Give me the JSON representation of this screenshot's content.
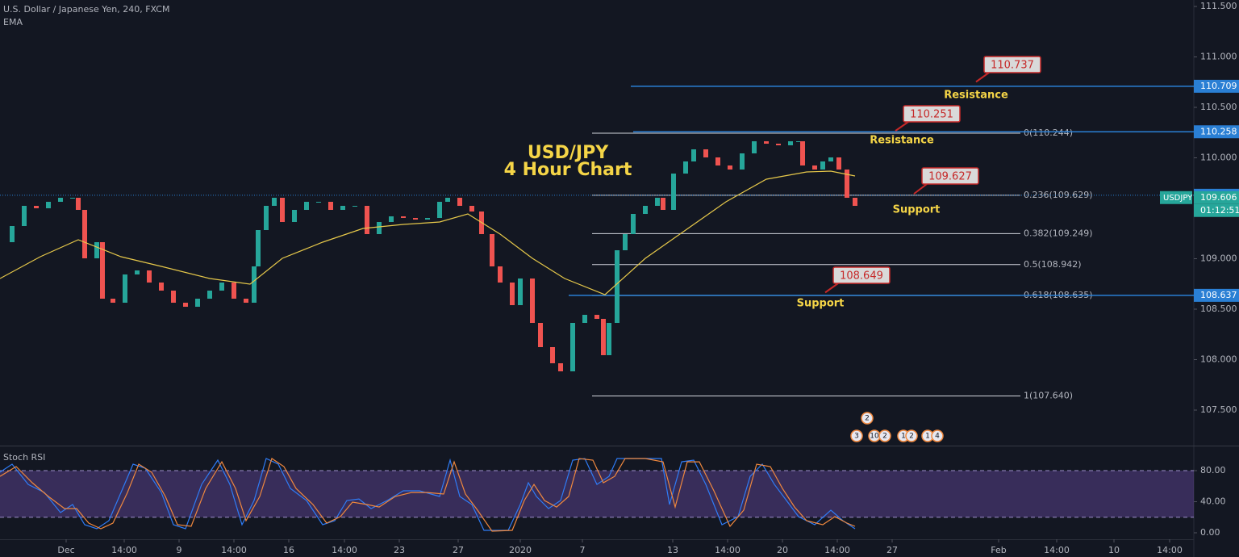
{
  "chart_data": [
    {
      "type": "candlestick",
      "title": "U.S. Dollar / Japanese Yen, 240, FXCM",
      "subtitle": "EMA",
      "heading": [
        "USD/JPY",
        "4 Hour Chart"
      ],
      "xlim": [
        0,
        148
      ],
      "ylim": [
        107.148,
        111.564
      ],
      "yticks": [
        {
          "value": 111.5,
          "label": "111.500"
        },
        {
          "value": 111,
          "label": "111.000"
        },
        {
          "value": 110.5,
          "label": "110.500"
        },
        {
          "value": 110,
          "label": "110.000"
        },
        {
          "value": 109.5,
          "label": "109.500"
        },
        {
          "value": 109,
          "label": "109.000"
        },
        {
          "value": 108.5,
          "label": "108.500"
        },
        {
          "value": 108,
          "label": "108.000"
        },
        {
          "value": 107.5,
          "label": "107.500"
        }
      ],
      "up_color": "#26a69a",
      "down_color": "#ef5350",
      "x": [
        0,
        1.5,
        3,
        4.5,
        6,
        7.5,
        9,
        9.7,
        10.5,
        12,
        12.7,
        14,
        15.5,
        17,
        18.5,
        20,
        21.5,
        23,
        24.5,
        26,
        27.5,
        29,
        30.5,
        31.5,
        32,
        33,
        34,
        35,
        36.5,
        38,
        39.5,
        41,
        42.5,
        44,
        45.5,
        47,
        48.5,
        50,
        51.5,
        53,
        54.5,
        55.5,
        57,
        58.5,
        59.7,
        61,
        62,
        63.5,
        64.5,
        66,
        67,
        68.5,
        69.5,
        71,
        72.5,
        74,
        74.8,
        75.5,
        76.5,
        77.5,
        78.5,
        80,
        81.5,
        82.2,
        83.5,
        85,
        86,
        87.5,
        89,
        90.5,
        92,
        93.5,
        95,
        96.5,
        98,
        99,
        99.5,
        101,
        102,
        103,
        104,
        105,
        106
      ],
      "values": [
        109.164,
        109.324,
        109.524,
        109.5,
        109.564,
        109.604,
        109.604,
        109.484,
        109.004,
        109.164,
        108.604,
        108.564,
        108.844,
        108.884,
        108.764,
        108.684,
        108.564,
        108.524,
        108.604,
        108.684,
        108.764,
        108.604,
        108.564,
        108.924,
        109.284,
        109.524,
        109.604,
        109.364,
        109.484,
        109.564,
        109.564,
        109.484,
        109.524,
        109.524,
        109.244,
        109.364,
        109.42,
        109.404,
        109.388,
        109.404,
        109.564,
        109.604,
        109.524,
        109.468,
        109.244,
        108.924,
        108.764,
        108.54,
        108.804,
        108.364,
        108.124,
        107.964,
        107.884,
        108.364,
        108.444,
        108.404,
        108.044,
        108.364,
        109.084,
        109.244,
        109.444,
        109.524,
        109.604,
        109.484,
        109.844,
        109.964,
        110.084,
        110.004,
        109.924,
        109.884,
        110.044,
        110.164,
        110.14,
        110.124,
        110.164,
        110.164,
        109.924,
        109.884,
        109.964,
        110.004,
        109.884,
        109.604,
        109.524
      ],
      "ema": {
        "color": "#e6c84a",
        "x": [
          0,
          5,
          9.7,
          15,
          20,
          26,
          31,
          35,
          40,
          45,
          50,
          54.5,
          58,
          62,
          66,
          70,
          75,
          80,
          85,
          90,
          95,
          100,
          103,
          106
        ],
        "values": [
          108.804,
          109.02,
          109.188,
          109.02,
          108.924,
          108.804,
          108.748,
          109.004,
          109.164,
          109.3,
          109.34,
          109.364,
          109.444,
          109.244,
          109.004,
          108.804,
          108.644,
          109.004,
          109.284,
          109.564,
          109.788,
          109.86,
          109.868,
          109.82
        ]
      },
      "hlines": [
        110.709,
        110.258,
        109.629,
        108.637
      ],
      "line_color": "#2a7fd4",
      "fib": [
        {
          "label": "0(110.244)",
          "value": 110.244
        },
        {
          "label": "0.236(109.629)",
          "value": 109.629
        },
        {
          "label": "0.382(109.249)",
          "value": 109.249
        },
        {
          "label": "0.5(108.942)",
          "value": 108.942
        },
        {
          "label": "0.618(108.635)",
          "value": 108.635
        },
        {
          "label": "1(107.640)",
          "value": 107.64
        }
      ],
      "annotations": [
        {
          "value": 110.737,
          "label": "Resistance"
        },
        {
          "value": 110.251,
          "label": "Resistance"
        },
        {
          "value": 109.627,
          "label": "Support"
        },
        {
          "value": 108.649,
          "label": "Support"
        }
      ],
      "symbol": "USDJPY",
      "last_price": 109.606,
      "countdown": "01:12:51",
      "events": [
        "2",
        "3",
        "10",
        "2",
        "1",
        "2",
        "1",
        "4"
      ]
    },
    {
      "type": "line",
      "title": "Stoch RSI",
      "xlim": [
        0,
        148
      ],
      "ylim": [
        -8.3,
        111.2
      ],
      "yticks": [
        {
          "value": 80,
          "label": "80.00"
        },
        {
          "value": 40,
          "label": "40.00"
        },
        {
          "value": 0,
          "label": "0.00"
        }
      ],
      "band": [
        20,
        80
      ],
      "xticks": [
        {
          "value": 8.2,
          "label": "Dec"
        },
        {
          "value": 15.4,
          "label": "14:00"
        },
        {
          "value": 22.2,
          "label": "9"
        },
        {
          "value": 29,
          "label": "14:00"
        },
        {
          "value": 35.8,
          "label": "16"
        },
        {
          "value": 42.7,
          "label": "14:00"
        },
        {
          "value": 49.5,
          "label": "23"
        },
        {
          "value": 56.8,
          "label": "27"
        },
        {
          "value": 64.5,
          "label": "2020"
        },
        {
          "value": 72.2,
          "label": "7"
        },
        {
          "value": 83.4,
          "label": "13"
        },
        {
          "value": 90.2,
          "label": "14:00"
        },
        {
          "value": 97,
          "label": "20"
        },
        {
          "value": 103.8,
          "label": "14:00"
        },
        {
          "value": 110.6,
          "label": "27"
        },
        {
          "value": 123.8,
          "label": "Feb"
        },
        {
          "value": 131,
          "label": "14:00"
        },
        {
          "value": 138.1,
          "label": "10"
        },
        {
          "value": 145,
          "label": "14:00"
        }
      ],
      "series": [
        {
          "color": "#2f7cf6",
          "x": [
            0,
            1.5,
            3.5,
            5.5,
            7.5,
            9,
            10.5,
            12,
            13.5,
            15,
            16.5,
            18,
            20,
            21.5,
            23,
            25,
            27,
            28.5,
            30,
            31.5,
            33,
            34.5,
            36,
            38,
            40,
            41.5,
            43,
            44.5,
            46,
            48,
            50,
            52,
            54.5,
            55.8,
            57,
            58.5,
            60,
            63,
            64.5,
            65.5,
            66.5,
            68,
            69.5,
            71,
            72.5,
            74,
            75.5,
            76.5,
            79,
            82,
            83,
            84.5,
            86,
            87.5,
            89.5,
            91.5,
            93,
            94.5,
            96,
            97.5,
            99,
            101,
            103,
            104.5,
            106
          ],
          "values": [
            77.9,
            88.3,
            62.3,
            51.9,
            26,
            36.4,
            10.4,
            5.2,
            15.6,
            51.9,
            88.3,
            83.1,
            51.9,
            10.4,
            5.2,
            62.3,
            93.5,
            62.3,
            10.4,
            41.6,
            95.6,
            88.3,
            57.1,
            41.6,
            10.4,
            15.6,
            41.6,
            43.6,
            31.2,
            41.6,
            54,
            54,
            46.8,
            93.5,
            46.8,
            36.4,
            3.1,
            3.1,
            36.4,
            64.4,
            46.8,
            31.2,
            41.6,
            93.5,
            95.6,
            62.3,
            72.7,
            95.6,
            95.6,
            95.6,
            36.4,
            91.4,
            93.5,
            62.3,
            10.4,
            20.8,
            72.7,
            88.3,
            62.3,
            41.6,
            20.8,
            10.4,
            29.1,
            15.6,
            5.2
          ]
        },
        {
          "color": "#f0883e",
          "x": [
            0,
            2,
            4,
            6,
            8,
            9.5,
            11,
            12.5,
            14,
            15.8,
            17.2,
            18.8,
            20.5,
            22,
            23.7,
            25.5,
            27.5,
            29.2,
            30.5,
            32.2,
            33.7,
            35.2,
            36.7,
            38.8,
            40.5,
            42.2,
            43.7,
            45.5,
            47,
            49,
            51,
            53,
            55,
            56.3,
            57.7,
            59.2,
            61,
            63.5,
            65,
            66.2,
            67.5,
            69,
            70.5,
            71.8,
            73.5,
            74.8,
            76.2,
            77.5,
            80,
            82.2,
            83.7,
            85.2,
            86.7,
            88.5,
            90.5,
            92.2,
            93.8,
            95.5,
            97,
            98.5,
            100,
            102,
            103.5,
            105,
            106
          ],
          "values": [
            72.7,
            85.2,
            64.4,
            46.8,
            31.2,
            31.2,
            12.5,
            5.2,
            12.5,
            51.9,
            88.3,
            77.9,
            46.8,
            10.4,
            8.3,
            57.1,
            91.4,
            57.1,
            15.6,
            46.8,
            95.6,
            85.2,
            57.1,
            36.4,
            12.5,
            20.8,
            39.5,
            36.4,
            33.2,
            46.8,
            51.9,
            51.9,
            49.9,
            91.4,
            49.9,
            29.1,
            2.1,
            3.1,
            41.6,
            62.3,
            41.6,
            33.2,
            46.8,
            95.6,
            93.5,
            64.4,
            72.7,
            95.6,
            95.6,
            91.4,
            33.2,
            91.4,
            91.4,
            54,
            8.3,
            29.1,
            88.3,
            85.2,
            57.1,
            33.2,
            15.6,
            10.4,
            20.8,
            12.5,
            8.3
          ]
        }
      ]
    }
  ]
}
